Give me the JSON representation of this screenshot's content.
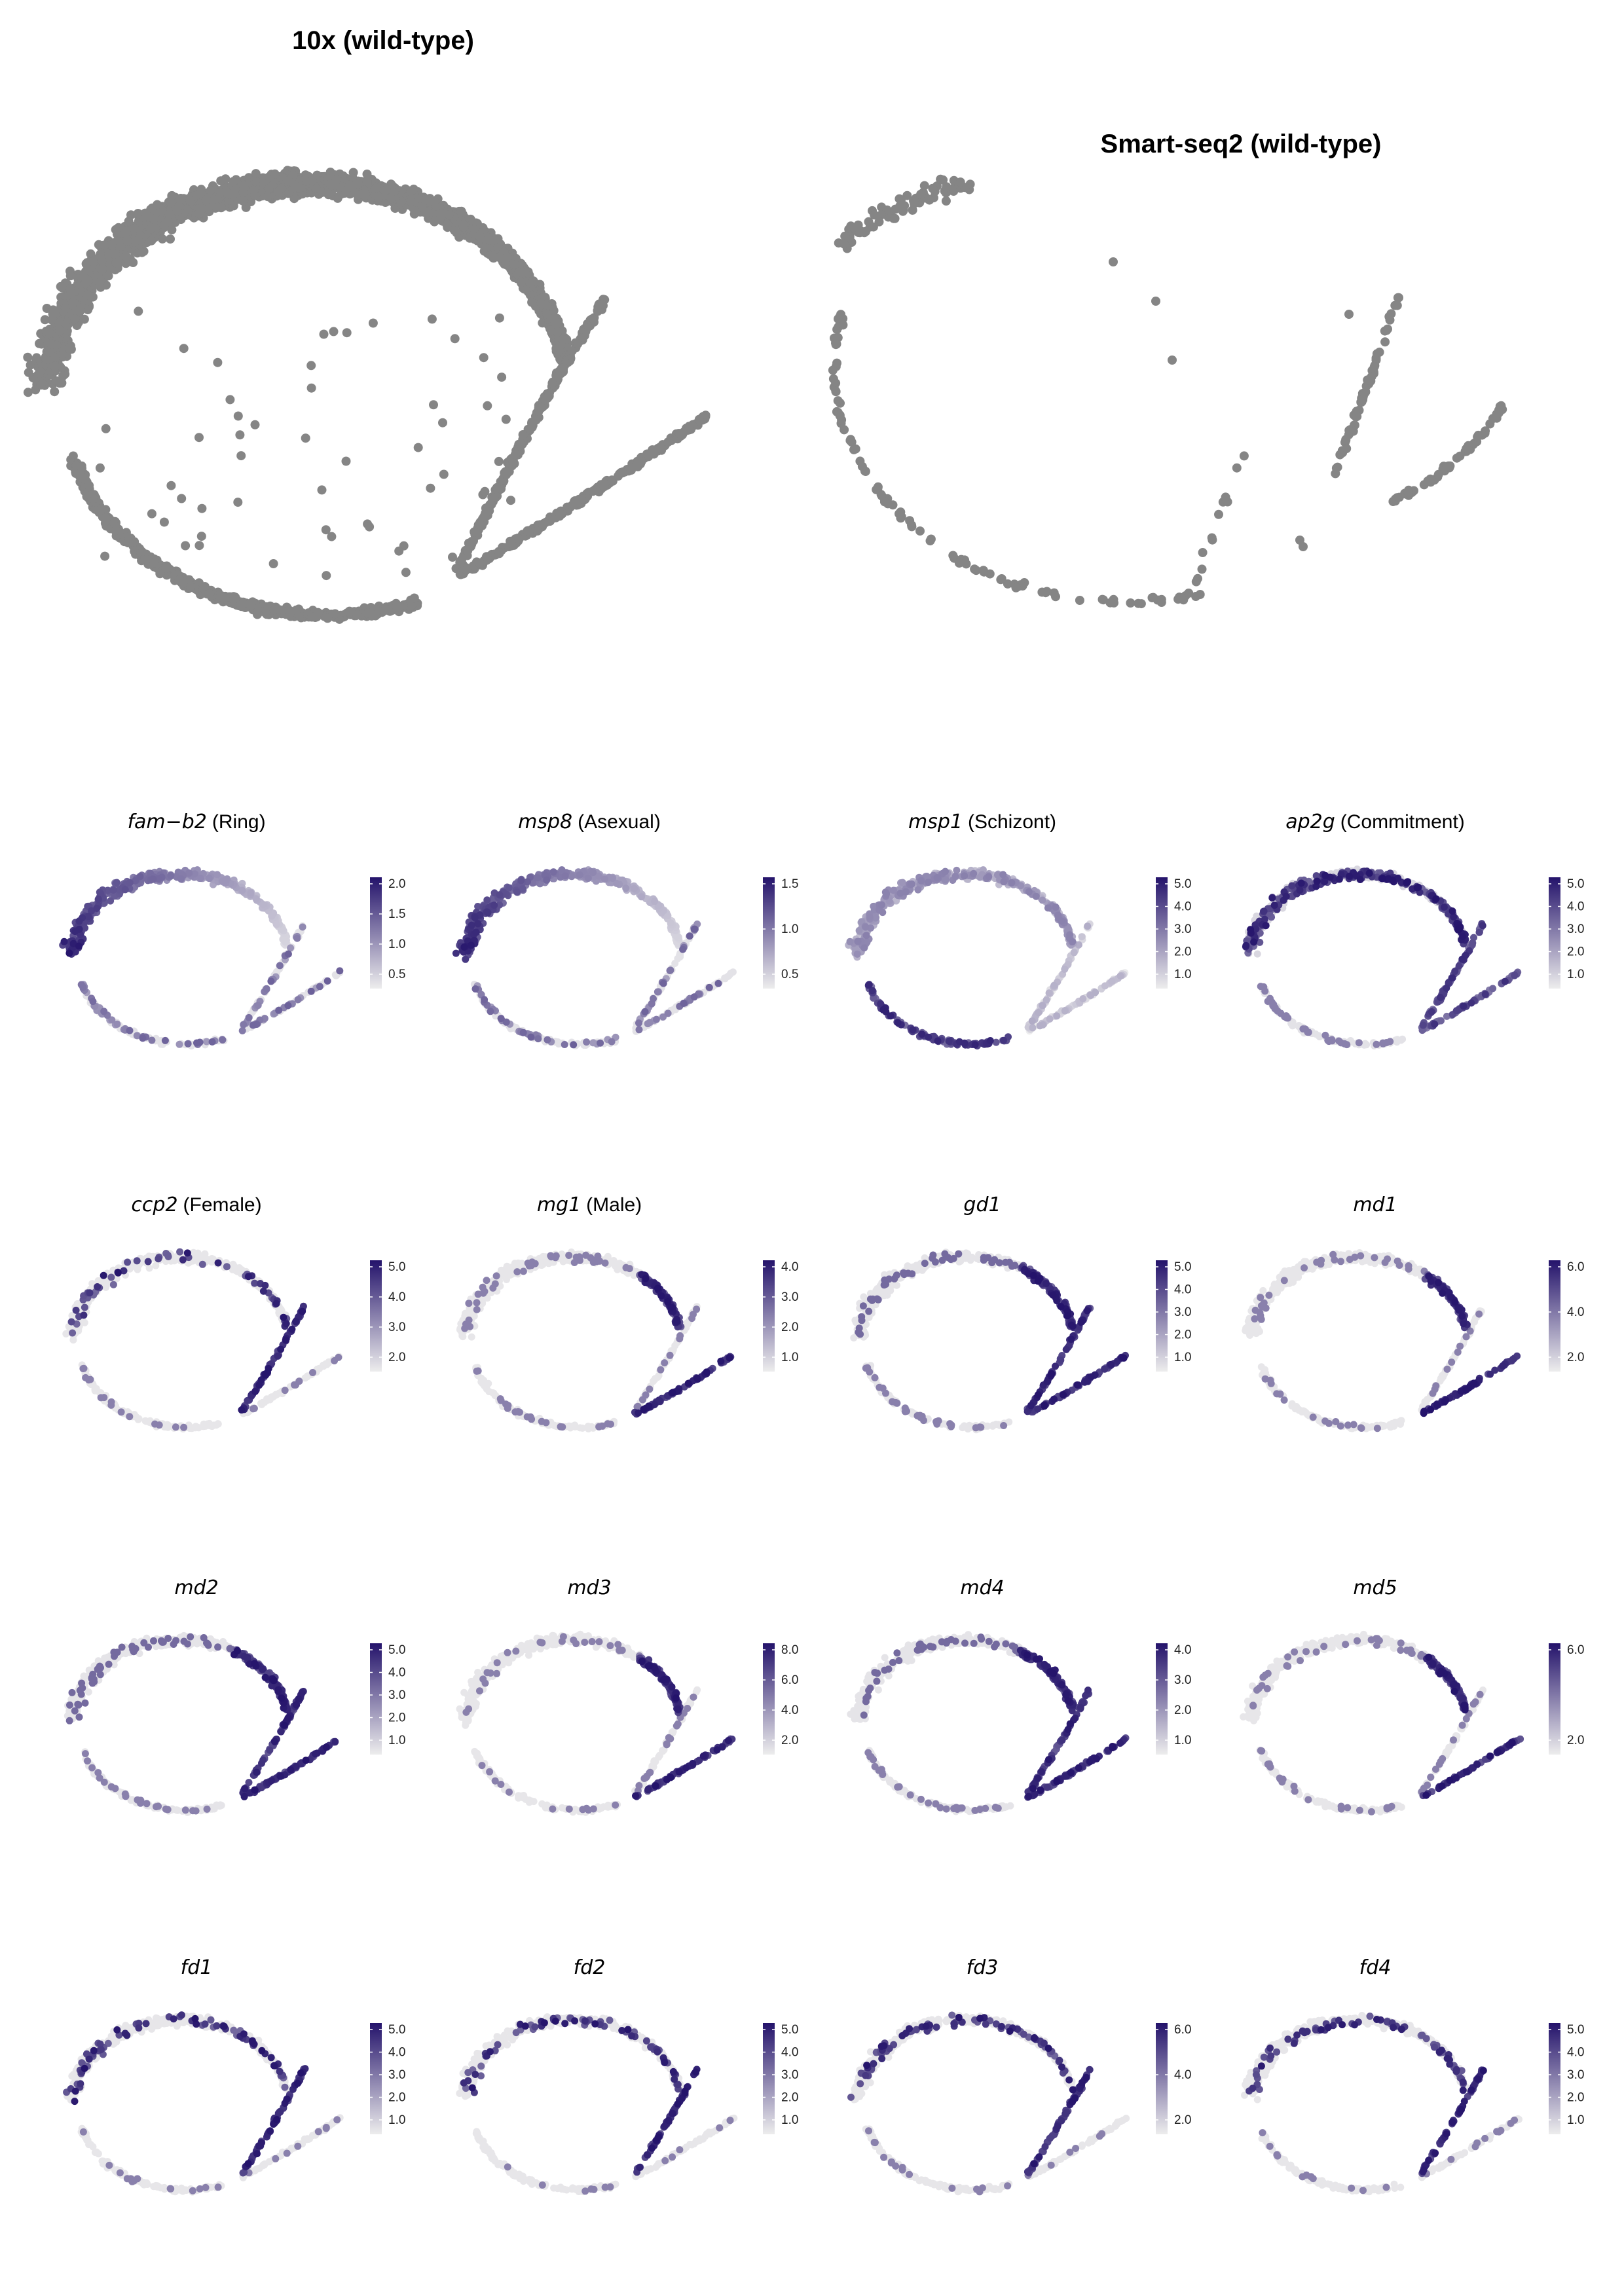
{
  "colors": {
    "grey_point": "#858585",
    "low": "#ededed",
    "high": "#24136b"
  },
  "top_panels": [
    {
      "id": "tenx",
      "title": "10x (wild-type)"
    },
    {
      "id": "smartseq",
      "title": "Smart-seq2 (wild-type)"
    }
  ],
  "chart_data": {
    "type": "scatter",
    "feature_panels": [
      {
        "gene": "fam−b2",
        "stage": "(Ring)",
        "ticks": [
          "0.5",
          "1.0",
          "1.5",
          "2.0"
        ],
        "pattern": "ring"
      },
      {
        "gene": "msp8",
        "stage": "(Asexual)",
        "ticks": [
          "0.5",
          "1.0",
          "1.5"
        ],
        "pattern": "ring"
      },
      {
        "gene": "msp1",
        "stage": "(Schizont)",
        "ticks": [
          "1.0",
          "2.0",
          "3.0",
          "4.0",
          "5.0"
        ],
        "pattern": "schizont"
      },
      {
        "gene": "ap2g",
        "stage": "(Commitment)",
        "ticks": [
          "1.0",
          "2.0",
          "3.0",
          "4.0",
          "5.0"
        ],
        "pattern": "commit"
      },
      {
        "gene": "ccp2",
        "stage": "(Female)",
        "ticks": [
          "2.0",
          "3.0",
          "4.0",
          "5.0"
        ],
        "pattern": "female"
      },
      {
        "gene": "mg1",
        "stage": "(Male)",
        "ticks": [
          "1.0",
          "2.0",
          "3.0",
          "4.0"
        ],
        "pattern": "male"
      },
      {
        "gene": "gd1",
        "stage": "",
        "ticks": [
          "1.0",
          "2.0",
          "3.0",
          "4.0",
          "5.0"
        ],
        "pattern": "both"
      },
      {
        "gene": "md1",
        "stage": "",
        "ticks": [
          "2.0",
          "4.0",
          "6.0"
        ],
        "pattern": "male"
      },
      {
        "gene": "md2",
        "stage": "",
        "ticks": [
          "1.0",
          "2.0",
          "3.0",
          "4.0",
          "5.0"
        ],
        "pattern": "both"
      },
      {
        "gene": "md3",
        "stage": "",
        "ticks": [
          "2.0",
          "4.0",
          "6.0",
          "8.0"
        ],
        "pattern": "male"
      },
      {
        "gene": "md4",
        "stage": "",
        "ticks": [
          "1.0",
          "2.0",
          "3.0",
          "4.0"
        ],
        "pattern": "both"
      },
      {
        "gene": "md5",
        "stage": "",
        "ticks": [
          "2.0",
          "6.0"
        ],
        "pattern": "male"
      },
      {
        "gene": "fd1",
        "stage": "",
        "ticks": [
          "1.0",
          "2.0",
          "3.0",
          "4.0",
          "5.0"
        ],
        "pattern": "female"
      },
      {
        "gene": "fd2",
        "stage": "",
        "ticks": [
          "1.0",
          "2.0",
          "3.0",
          "4.0",
          "5.0"
        ],
        "pattern": "female"
      },
      {
        "gene": "fd3",
        "stage": "",
        "ticks": [
          "2.0",
          "4.0",
          "6.0"
        ],
        "pattern": "female"
      },
      {
        "gene": "fd4",
        "stage": "",
        "ticks": [
          "1.0",
          "2.0",
          "3.0",
          "4.0",
          "5.0"
        ],
        "pattern": "female"
      }
    ]
  }
}
